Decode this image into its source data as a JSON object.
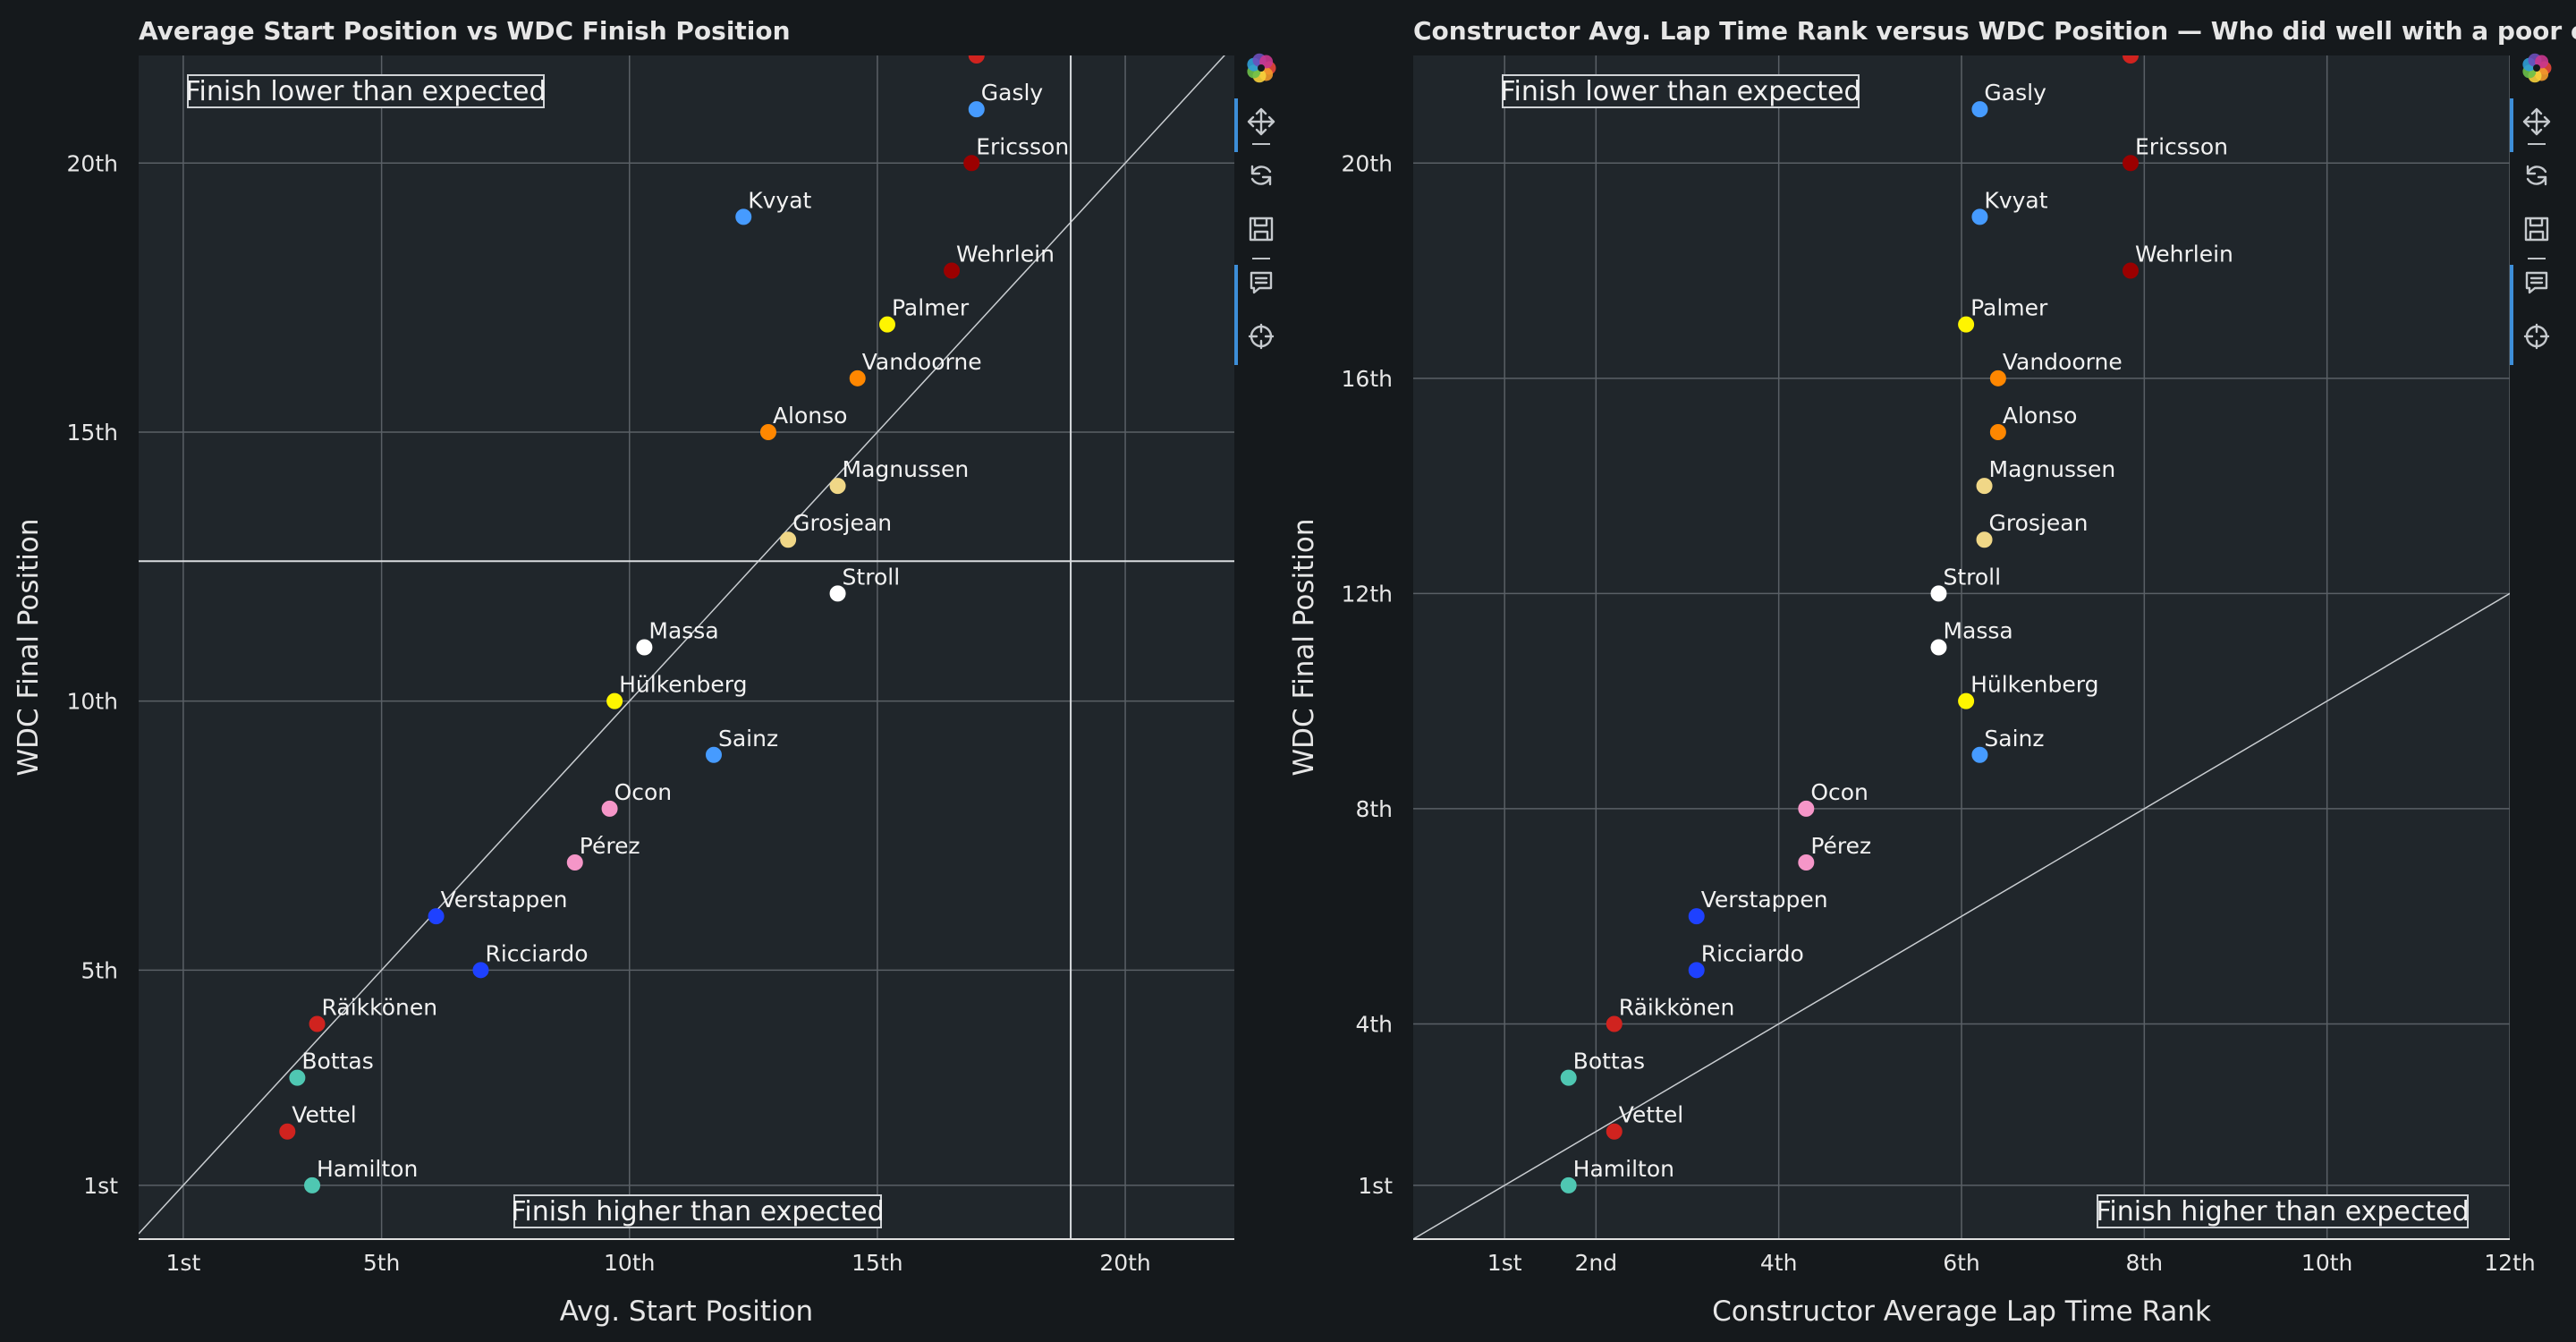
{
  "chart_data": [
    {
      "type": "scatter",
      "title": "Average Start Position vs WDC Finish Position",
      "xlabel": "Avg. Start Position",
      "ylabel": "WDC Final Position",
      "xlim": [
        0.1,
        22.2
      ],
      "ylim": [
        22.0,
        0.0
      ],
      "x_ticks": [
        {
          "value": 1,
          "label": "1st"
        },
        {
          "value": 5,
          "label": "5th"
        },
        {
          "value": 10,
          "label": "10th"
        },
        {
          "value": 15,
          "label": "15th"
        },
        {
          "value": 20,
          "label": "20th"
        }
      ],
      "y_ticks": [
        {
          "value": 1,
          "label": "1st"
        },
        {
          "value": 5,
          "label": "5th"
        },
        {
          "value": 10,
          "label": "10th"
        },
        {
          "value": 15,
          "label": "15th"
        },
        {
          "value": 20,
          "label": "20th"
        }
      ],
      "grid": true,
      "crosshair": {
        "x": 18.9,
        "y": 12.6
      },
      "annotations": [
        {
          "text": "Finish lower than expected",
          "position": "top-left"
        },
        {
          "text": "Finish higher than expected",
          "position": "bottom-center"
        }
      ],
      "points": [
        {
          "label": "Hamilton",
          "x": 3.6,
          "y": 1,
          "color": "#4fc7b2"
        },
        {
          "label": "Vettel",
          "x": 3.1,
          "y": 2,
          "color": "#d0231f"
        },
        {
          "label": "Bottas",
          "x": 3.3,
          "y": 3,
          "color": "#4fc7b2"
        },
        {
          "label": "Räikkönen",
          "x": 3.7,
          "y": 4,
          "color": "#d0231f"
        },
        {
          "label": "Ricciardo",
          "x": 7.0,
          "y": 5,
          "color": "#1e41ff"
        },
        {
          "label": "Verstappen",
          "x": 6.1,
          "y": 6,
          "color": "#1e41ff"
        },
        {
          "label": "Pérez",
          "x": 8.9,
          "y": 7,
          "color": "#f596c8"
        },
        {
          "label": "Ocon",
          "x": 9.6,
          "y": 8,
          "color": "#f596c8"
        },
        {
          "label": "Sainz",
          "x": 11.7,
          "y": 9,
          "color": "#469bff"
        },
        {
          "label": "Hülkenberg",
          "x": 9.7,
          "y": 10,
          "color": "#fff500"
        },
        {
          "label": "Massa",
          "x": 10.3,
          "y": 11,
          "color": "#ffffff"
        },
        {
          "label": "Stroll",
          "x": 14.2,
          "y": 12,
          "color": "#ffffff"
        },
        {
          "label": "Grosjean",
          "x": 13.2,
          "y": 13,
          "color": "#f0d787"
        },
        {
          "label": "Magnussen",
          "x": 14.2,
          "y": 14,
          "color": "#f0d787"
        },
        {
          "label": "Alonso",
          "x": 12.8,
          "y": 15,
          "color": "#ff8700"
        },
        {
          "label": "Vandoorne",
          "x": 14.6,
          "y": 16,
          "color": "#ff8700"
        },
        {
          "label": "Palmer",
          "x": 15.2,
          "y": 17,
          "color": "#fff500"
        },
        {
          "label": "Wehrlein",
          "x": 16.5,
          "y": 18,
          "color": "#9b0000"
        },
        {
          "label": "Kvyat",
          "x": 12.3,
          "y": 19,
          "color": "#469bff"
        },
        {
          "label": "Ericsson",
          "x": 16.9,
          "y": 20,
          "color": "#9b0000"
        },
        {
          "label": "Gasly",
          "x": 17.0,
          "y": 21,
          "color": "#469bff"
        },
        {
          "label": "",
          "x": 17.0,
          "y": 22,
          "color": "#d0231f"
        }
      ]
    },
    {
      "type": "scatter",
      "title": "Constructor Avg. Lap Time Rank versus WDC Position — Who did well with a poor car?",
      "xlabel": "Constructor Average Lap Time Rank",
      "ylabel": "WDC Final Position",
      "xlim": [
        0.0,
        12.0
      ],
      "ylim": [
        22.0,
        0.0
      ],
      "x_ticks": [
        {
          "value": 1,
          "label": "1st"
        },
        {
          "value": 2,
          "label": "2nd"
        },
        {
          "value": 4,
          "label": "4th"
        },
        {
          "value": 6,
          "label": "6th"
        },
        {
          "value": 8,
          "label": "8th"
        },
        {
          "value": 10,
          "label": "10th"
        },
        {
          "value": 12,
          "label": "12th"
        }
      ],
      "y_ticks": [
        {
          "value": 1,
          "label": "1st"
        },
        {
          "value": 4,
          "label": "4th"
        },
        {
          "value": 8,
          "label": "8th"
        },
        {
          "value": 12,
          "label": "12th"
        },
        {
          "value": 16,
          "label": "16th"
        },
        {
          "value": 20,
          "label": "20th"
        }
      ],
      "grid": true,
      "annotations": [
        {
          "text": "Finish lower than expected",
          "position": "top-left"
        },
        {
          "text": "Finish higher than expected",
          "position": "bottom-right"
        }
      ],
      "points": [
        {
          "label": "Hamilton",
          "x": 1.7,
          "y": 1,
          "color": "#4fc7b2"
        },
        {
          "label": "Vettel",
          "x": 2.2,
          "y": 2,
          "color": "#d0231f"
        },
        {
          "label": "Bottas",
          "x": 1.7,
          "y": 3,
          "color": "#4fc7b2"
        },
        {
          "label": "Räikkönen",
          "x": 2.2,
          "y": 4,
          "color": "#d0231f"
        },
        {
          "label": "Ricciardo",
          "x": 3.1,
          "y": 5,
          "color": "#1e41ff"
        },
        {
          "label": "Verstappen",
          "x": 3.1,
          "y": 6,
          "color": "#1e41ff"
        },
        {
          "label": "Pérez",
          "x": 4.3,
          "y": 7,
          "color": "#f596c8"
        },
        {
          "label": "Ocon",
          "x": 4.3,
          "y": 8,
          "color": "#f596c8"
        },
        {
          "label": "Sainz",
          "x": 6.2,
          "y": 9,
          "color": "#469bff"
        },
        {
          "label": "Hülkenberg",
          "x": 6.05,
          "y": 10,
          "color": "#fff500"
        },
        {
          "label": "Massa",
          "x": 5.75,
          "y": 11,
          "color": "#ffffff"
        },
        {
          "label": "Stroll",
          "x": 5.75,
          "y": 12,
          "color": "#ffffff"
        },
        {
          "label": "Grosjean",
          "x": 6.25,
          "y": 13,
          "color": "#f0d787"
        },
        {
          "label": "Magnussen",
          "x": 6.25,
          "y": 14,
          "color": "#f0d787"
        },
        {
          "label": "Alonso",
          "x": 6.4,
          "y": 15,
          "color": "#ff8700"
        },
        {
          "label": "Vandoorne",
          "x": 6.4,
          "y": 16,
          "color": "#ff8700"
        },
        {
          "label": "Palmer",
          "x": 6.05,
          "y": 17,
          "color": "#fff500"
        },
        {
          "label": "Wehrlein",
          "x": 7.85,
          "y": 18,
          "color": "#9b0000"
        },
        {
          "label": "Kvyat",
          "x": 6.2,
          "y": 19,
          "color": "#469bff"
        },
        {
          "label": "Ericsson",
          "x": 7.85,
          "y": 20,
          "color": "#9b0000"
        },
        {
          "label": "Gasly",
          "x": 6.2,
          "y": 21,
          "color": "#469bff"
        },
        {
          "label": "",
          "x": 7.85,
          "y": 22,
          "color": "#d0231f"
        }
      ]
    }
  ],
  "toolbar": {
    "tools": [
      {
        "icon": "bokeh-logo-icon",
        "active": false
      },
      {
        "icon": "pan-icon",
        "active": true
      },
      {
        "icon": "reset-icon",
        "active": false
      },
      {
        "icon": "save-icon",
        "active": false
      },
      {
        "icon": "hover-icon",
        "active": true
      },
      {
        "icon": "crosshair-icon",
        "active": true
      }
    ],
    "accent_color": "#3d8ed8"
  },
  "theme": {
    "background": "#15191c",
    "plot_background": "#20262b",
    "grid": "#5a6066",
    "text": "#e6e6e6"
  }
}
